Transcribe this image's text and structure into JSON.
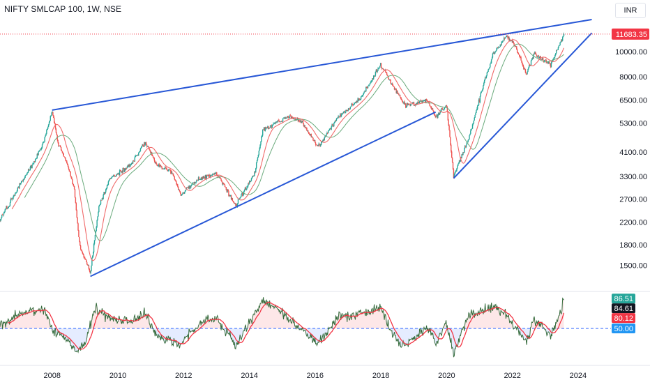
{
  "header": {
    "symbol_title": "NIFTY SMLCAP 100, 1W, NSE",
    "currency": "INR"
  },
  "colors": {
    "up": "#26a69a",
    "down": "#ef5350",
    "price_line": "#f23645",
    "trendline": "#2757d6",
    "ma_fast": "#f06969",
    "ma_slow": "#6aaa7c",
    "rsi_line": "#356b3c",
    "rsi_ma": "#f23645",
    "rsi_mid": "#2962ff",
    "axis_text": "#131722"
  },
  "chart_data": [
    {
      "type": "candlestick",
      "title": "NIFTY SMLCAP 100, 1W, NSE",
      "x_axis": {
        "type": "date",
        "range": [
          "2006-06-01",
          "2024-12-31"
        ],
        "tick_labels": [
          "2008",
          "2010",
          "2012",
          "2014",
          "2016",
          "2018",
          "2020",
          "2022",
          "2024"
        ]
      },
      "y_axis": {
        "scale": "log",
        "position": "right",
        "range": [
          1250,
          13800
        ],
        "tick_labels": [
          "1500.00",
          "1800.00",
          "2200.00",
          "2700.00",
          "3300.00",
          "4100.00",
          "5300.00",
          "6500.00",
          "8000.00",
          "10000.00"
        ]
      },
      "last_price": {
        "label": "11683.35",
        "value": 11683.35
      },
      "series": [
        {
          "kind": "price-path",
          "points": [
            [
              "2006-06-01",
              2250
            ],
            [
              "2006-12-01",
              2900
            ],
            [
              "2007-06-01",
              3700
            ],
            [
              "2007-10-01",
              4500
            ],
            [
              "2008-01-01",
              5950
            ],
            [
              "2008-03-01",
              4500
            ],
            [
              "2008-06-01",
              3800
            ],
            [
              "2008-09-01",
              3000
            ],
            [
              "2008-11-01",
              1800
            ],
            [
              "2009-03-01",
              1400
            ],
            [
              "2009-06-01",
              2500
            ],
            [
              "2009-10-01",
              3200
            ],
            [
              "2010-06-01",
              3700
            ],
            [
              "2010-11-01",
              4500
            ],
            [
              "2011-03-01",
              3700
            ],
            [
              "2011-09-01",
              3400
            ],
            [
              "2011-12-01",
              2800
            ],
            [
              "2012-06-01",
              3200
            ],
            [
              "2013-01-01",
              3400
            ],
            [
              "2013-08-01",
              2550
            ],
            [
              "2014-03-01",
              3400
            ],
            [
              "2014-06-01",
              5000
            ],
            [
              "2015-03-01",
              5600
            ],
            [
              "2015-08-01",
              5400
            ],
            [
              "2016-02-01",
              4300
            ],
            [
              "2016-09-01",
              5500
            ],
            [
              "2017-06-01",
              6700
            ],
            [
              "2018-01-01",
              8900
            ],
            [
              "2018-05-01",
              7500
            ],
            [
              "2018-10-01",
              6200
            ],
            [
              "2019-06-01",
              6500
            ],
            [
              "2019-09-01",
              5600
            ],
            [
              "2020-01-01",
              6200
            ],
            [
              "2020-03-20",
              3300
            ],
            [
              "2020-09-01",
              4600
            ],
            [
              "2021-03-01",
              7800
            ],
            [
              "2021-06-01",
              9800
            ],
            [
              "2021-11-01",
              11500
            ],
            [
              "2022-02-01",
              10600
            ],
            [
              "2022-06-01",
              8200
            ],
            [
              "2022-09-01",
              9800
            ],
            [
              "2023-03-01",
              8900
            ],
            [
              "2023-06-01",
              10500
            ],
            [
              "2023-08-01",
              11683.35
            ]
          ]
        },
        {
          "kind": "moving-average",
          "name": "",
          "length": 20
        },
        {
          "kind": "moving-average",
          "name": "",
          "length": 40
        }
      ],
      "trendlines": [
        {
          "from": [
            "2008-01-01",
            5950
          ],
          "to": [
            "2024-06-01",
            13300
          ]
        },
        {
          "from": [
            "2009-03-01",
            1360
          ],
          "to": [
            "2019-09-01",
            5850
          ]
        },
        {
          "from": [
            "2020-03-20",
            3250
          ],
          "to": [
            "2024-06-01",
            11800
          ]
        }
      ]
    },
    {
      "type": "line",
      "title": "",
      "y_axis": {
        "range": [
          10,
          90
        ]
      },
      "series": [
        {
          "name": "",
          "kind": "rsi",
          "points": [
            [
              "2006-06-01",
              52
            ],
            [
              "2007-01-01",
              68
            ],
            [
              "2007-10-01",
              75
            ],
            [
              "2008-02-01",
              44
            ],
            [
              "2008-06-01",
              38
            ],
            [
              "2008-10-01",
              22
            ],
            [
              "2009-01-01",
              34
            ],
            [
              "2009-05-01",
              75
            ],
            [
              "2009-10-01",
              62
            ],
            [
              "2010-06-01",
              58
            ],
            [
              "2010-11-01",
              70
            ],
            [
              "2011-03-01",
              40
            ],
            [
              "2011-12-01",
              30
            ],
            [
              "2012-06-01",
              55
            ],
            [
              "2013-01-01",
              62
            ],
            [
              "2013-08-01",
              30
            ],
            [
              "2014-06-01",
              85
            ],
            [
              "2015-02-01",
              66
            ],
            [
              "2015-08-01",
              48
            ],
            [
              "2016-02-01",
              30
            ],
            [
              "2016-09-01",
              64
            ],
            [
              "2017-06-01",
              68
            ],
            [
              "2018-01-01",
              76
            ],
            [
              "2018-06-01",
              38
            ],
            [
              "2018-10-01",
              30
            ],
            [
              "2019-06-01",
              50
            ],
            [
              "2019-09-01",
              35
            ],
            [
              "2020-01-01",
              55
            ],
            [
              "2020-03-20",
              20
            ],
            [
              "2020-09-01",
              66
            ],
            [
              "2021-06-01",
              76
            ],
            [
              "2021-11-01",
              64
            ],
            [
              "2022-06-01",
              34
            ],
            [
              "2022-09-01",
              62
            ],
            [
              "2023-03-01",
              40
            ],
            [
              "2023-08-01",
              84.61
            ]
          ]
        },
        {
          "name": "",
          "kind": "rsi-ma",
          "length": 14
        }
      ],
      "reference_lines": [
        50
      ],
      "value_labels": [
        {
          "label": "86.51",
          "value": 86.51,
          "style": "green"
        },
        {
          "label": "84.61",
          "value": 84.61,
          "style": "dark"
        },
        {
          "label": "80.12",
          "value": 80.12,
          "style": "red"
        },
        {
          "label": "50.00",
          "value": 50,
          "style": "blue"
        }
      ]
    }
  ]
}
